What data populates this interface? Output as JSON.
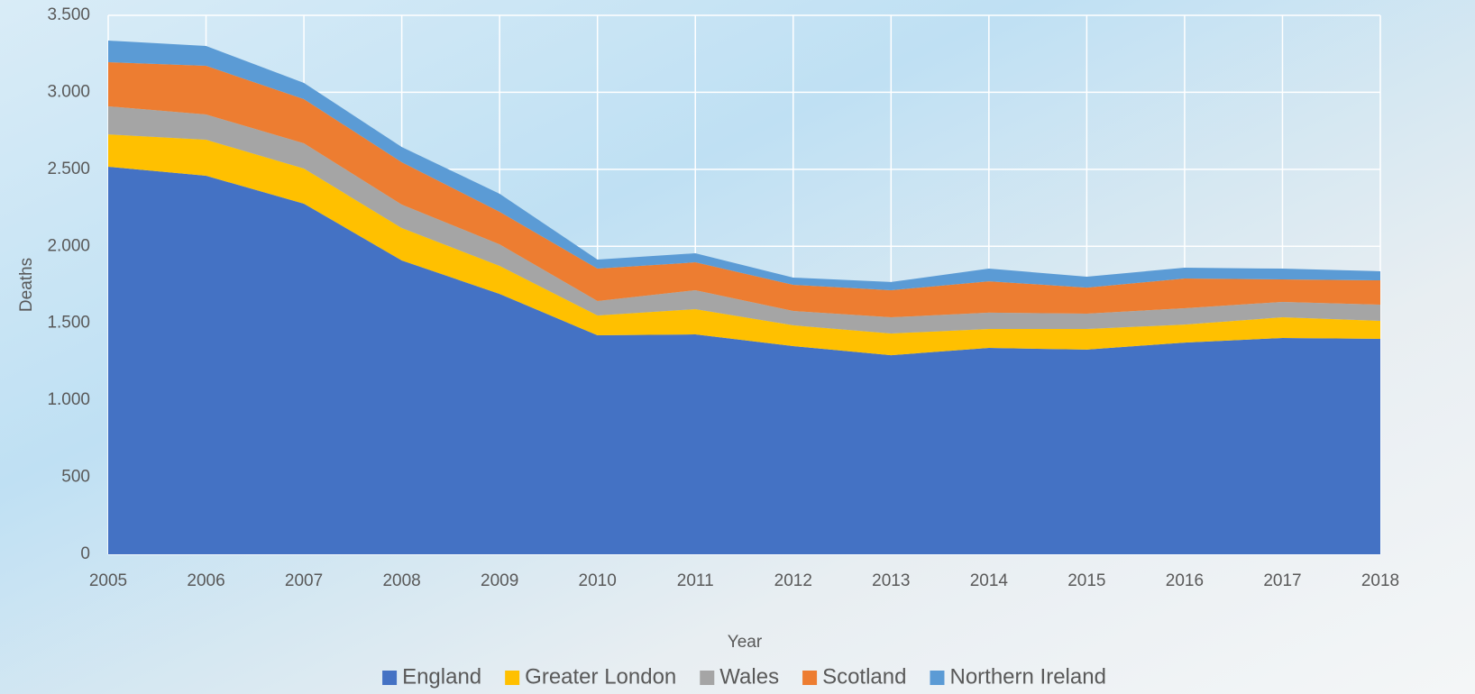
{
  "chart_data": {
    "type": "stacked-area",
    "x_label": "Year",
    "y_label": "Deaths",
    "x": [
      2005,
      2006,
      2007,
      2008,
      2009,
      2010,
      2011,
      2012,
      2013,
      2014,
      2015,
      2016,
      2017,
      2018
    ],
    "xlim": [
      2005,
      2018
    ],
    "xticks": [
      2005,
      2006,
      2007,
      2008,
      2009,
      2010,
      2011,
      2012,
      2013,
      2014,
      2015,
      2016,
      2017,
      2018
    ],
    "ylim": [
      0,
      3500
    ],
    "yticks": [
      0,
      500,
      {
        "value": 1000,
        "label": "1.000"
      },
      {
        "value": 1500,
        "label": "1.500"
      },
      {
        "value": 2000,
        "label": "2.000"
      },
      {
        "value": 2500,
        "label": "2.500"
      },
      {
        "value": 3000,
        "label": "3.000"
      },
      {
        "value": 3500,
        "label": "3.500"
      }
    ],
    "grid": true,
    "legend": "bottom",
    "series": [
      {
        "name": "England",
        "color": "#4472c4",
        "values": [
          2517,
          2458,
          2277,
          1908,
          1691,
          1422,
          1428,
          1352,
          1293,
          1340,
          1329,
          1375,
          1405,
          1399
        ]
      },
      {
        "name": "Greater London",
        "color": "#ffc000",
        "values": [
          210,
          234,
          228,
          211,
          182,
          129,
          164,
          135,
          141,
          123,
          134,
          117,
          134,
          117
        ]
      },
      {
        "name": "Wales",
        "color": "#a5a5a5",
        "values": [
          182,
          164,
          164,
          152,
          140,
          94,
          123,
          93,
          105,
          106,
          100,
          106,
          100,
          105
        ]
      },
      {
        "name": "Scotland",
        "color": "#ed7d31",
        "values": [
          287,
          316,
          287,
          275,
          211,
          210,
          181,
          170,
          176,
          204,
          169,
          193,
          146,
          158
        ]
      },
      {
        "name": "Northern Ireland",
        "color": "#5b9bd5",
        "values": [
          140,
          129,
          105,
          99,
          117,
          59,
          59,
          47,
          53,
          82,
          71,
          70,
          70,
          59
        ]
      }
    ]
  }
}
